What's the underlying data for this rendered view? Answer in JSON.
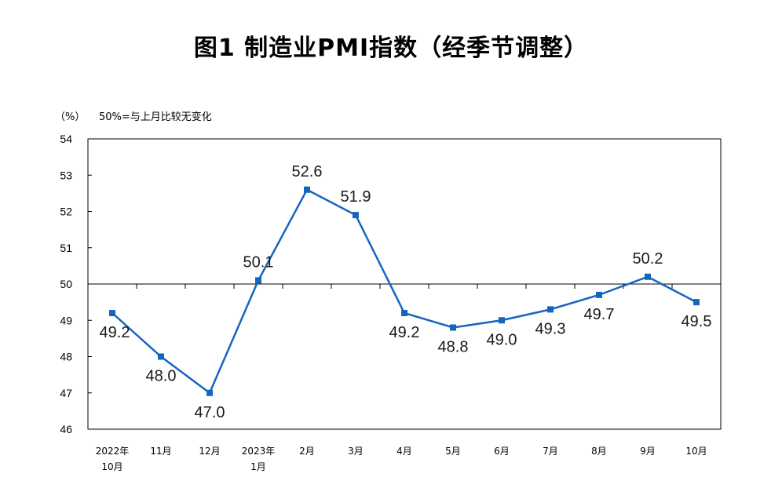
{
  "title": "图1  制造业PMI指数（经季节调整）",
  "unit": "（%）",
  "note": "50%=与上月比较无变化",
  "chart_data": {
    "type": "line",
    "title": "图1  制造业PMI指数（经季节调整）",
    "xlabel": "",
    "ylabel": "（%）",
    "ylim": [
      46,
      54
    ],
    "yticks": [
      46,
      47,
      48,
      49,
      50,
      51,
      52,
      53,
      54
    ],
    "reference_line": 50,
    "grid": false,
    "categories": [
      [
        "2022年",
        "10月"
      ],
      [
        "11月"
      ],
      [
        "12月"
      ],
      [
        "2023年",
        "1月"
      ],
      [
        "2月"
      ],
      [
        "3月"
      ],
      [
        "4月"
      ],
      [
        "5月"
      ],
      [
        "6月"
      ],
      [
        "7月"
      ],
      [
        "8月"
      ],
      [
        "9月"
      ],
      [
        "10月"
      ]
    ],
    "series": [
      {
        "color": "#1565C0",
        "values": [
          49.2,
          48.0,
          47.0,
          50.1,
          52.6,
          51.9,
          49.2,
          48.8,
          49.0,
          49.3,
          49.7,
          50.2,
          49.5
        ],
        "labels": [
          "49.2",
          "48.0",
          "47.0",
          "50.1",
          "52.6",
          "51.9",
          "49.2",
          "48.8",
          "49.0",
          "49.3",
          "49.7",
          "50.2",
          "49.5"
        ]
      }
    ]
  }
}
